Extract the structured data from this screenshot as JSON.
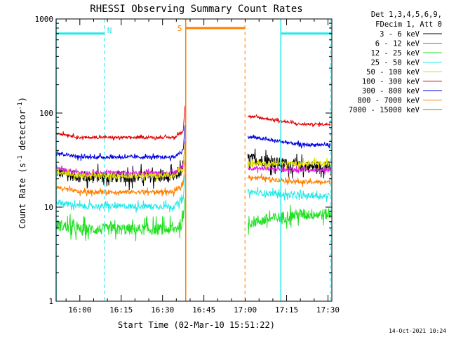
{
  "chart_data": {
    "type": "line",
    "title": "RHESSI Observing Summary Count Rates",
    "xlabel": "Start Time (02-Mar-10 15:51:22)",
    "ylabel_main": "Count Rate (s",
    "ylabel_sup1": "-1",
    "ylabel_mid": " detector",
    "ylabel_sup2": "-1",
    "ylabel_end": ")",
    "y_scale": "log",
    "ylim": [
      1,
      1000
    ],
    "xlim_minutes": [
      0,
      100
    ],
    "x_ticks": [
      {
        "label": "16:00",
        "minute": 8.6
      },
      {
        "label": "16:15",
        "minute": 23.6
      },
      {
        "label": "16:30",
        "minute": 38.6
      },
      {
        "label": "16:45",
        "minute": 53.6
      },
      {
        "label": "17:00",
        "minute": 68.6
      },
      {
        "label": "17:15",
        "minute": 83.6
      },
      {
        "label": "17:30",
        "minute": 98.6
      }
    ],
    "y_ticks": [
      {
        "label": "1",
        "value": 1
      },
      {
        "label": "10",
        "value": 10
      },
      {
        "label": "100",
        "value": 100
      },
      {
        "label": "1000",
        "value": 1000
      }
    ],
    "legend_header": [
      "Det 1,3,4,5,6,9,",
      "FDecim 1, Att 0"
    ],
    "series": [
      {
        "name": "3 - 6 keV",
        "color": "#000000",
        "pre": 21,
        "post": [
          33,
          27
        ],
        "noise": 0.14
      },
      {
        "name": "6 - 12 keV",
        "color": "#e020e0",
        "pre": 23,
        "post": [
          26,
          25
        ],
        "noise": 0.05
      },
      {
        "name": "12 - 25 keV",
        "color": "#22e022",
        "pre": 5.8,
        "post": [
          6.8,
          8.4
        ],
        "noise": 0.14
      },
      {
        "name": "25 - 50 keV",
        "color": "#22e8e8",
        "pre": 10.2,
        "post": [
          14.5,
          13.2
        ],
        "noise": 0.07
      },
      {
        "name": "50 - 100 keV",
        "color": "#e0e000",
        "pre": 21.5,
        "post": [
          29,
          29
        ],
        "noise": 0.06
      },
      {
        "name": "100 - 300 keV",
        "color": "#e00000",
        "pre": 55,
        "post": [
          93,
          76
        ],
        "noise": 0.03
      },
      {
        "name": "300 - 800 keV",
        "color": "#0000e0",
        "pre": 34,
        "post": [
          56,
          46
        ],
        "noise": 0.04
      },
      {
        "name": "800 - 7000 keV",
        "color": "#ff7f00",
        "pre": 14.5,
        "post": [
          21,
          18.5
        ],
        "noise": 0.05
      },
      {
        "name": "7000 - 15000 keV",
        "color": "#808000",
        "pre": 0,
        "post": [
          0,
          0
        ],
        "noise": 0
      }
    ],
    "pre_window_minutes": [
      0,
      47
    ],
    "post_window_minutes": [
      69.5,
      100
    ],
    "gap_minutes": [
      47,
      69.5
    ],
    "night_bars": [
      {
        "label": "N",
        "start": 0,
        "end": 17.5,
        "color": "#22e8e8",
        "level": 700
      },
      {
        "label": "",
        "start": 81.5,
        "end": 100,
        "color": "#22e8e8",
        "level": 700
      }
    ],
    "saa_bar": {
      "label": "S",
      "start": 47,
      "end": 68.5,
      "color": "#ff7f00",
      "level": 800
    },
    "vlines": [
      {
        "minute": 0,
        "color": "#22e8e8",
        "style": "solid"
      },
      {
        "minute": 17.5,
        "color": "#22e8e8",
        "style": "dashed"
      },
      {
        "minute": 47,
        "color": "#ff7f00",
        "style": "solid"
      },
      {
        "minute": 68.5,
        "color": "#ff7f00",
        "style": "dashed"
      },
      {
        "minute": 81.5,
        "color": "#22e8e8",
        "style": "solid"
      },
      {
        "minute": 99.5,
        "color": "#22e8e8",
        "style": "dashed"
      }
    ],
    "grid": false,
    "legend_placement": "right",
    "footer": "14-Oct-2021 10:24"
  }
}
